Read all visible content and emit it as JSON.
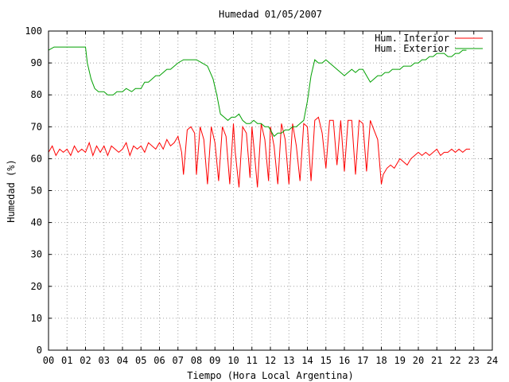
{
  "chart_data": {
    "type": "line",
    "title": "Humedad 01/05/2007",
    "xlabel": "Tiempo (Hora Local Argentina)",
    "ylabel": "Humedad (%)",
    "xlim": [
      0,
      24
    ],
    "ylim": [
      0,
      100
    ],
    "grid": true,
    "legend_position": "top-right",
    "x_tick_labels": [
      "00",
      "01",
      "02",
      "03",
      "04",
      "05",
      "06",
      "07",
      "08",
      "09",
      "10",
      "11",
      "12",
      "13",
      "14",
      "15",
      "16",
      "17",
      "18",
      "19",
      "20",
      "21",
      "22",
      "23",
      "24"
    ],
    "y_tick_labels": [
      "0",
      "10",
      "20",
      "30",
      "40",
      "50",
      "60",
      "70",
      "80",
      "90",
      "100"
    ],
    "series": [
      {
        "name": "Hum. Interior",
        "color": "#ff0000",
        "points": [
          [
            0.0,
            62
          ],
          [
            0.2,
            64
          ],
          [
            0.4,
            61
          ],
          [
            0.6,
            63
          ],
          [
            0.8,
            62
          ],
          [
            1.0,
            63
          ],
          [
            1.2,
            61
          ],
          [
            1.4,
            64
          ],
          [
            1.6,
            62
          ],
          [
            1.8,
            63
          ],
          [
            2.0,
            62
          ],
          [
            2.2,
            65
          ],
          [
            2.4,
            61
          ],
          [
            2.6,
            64
          ],
          [
            2.8,
            62
          ],
          [
            3.0,
            64
          ],
          [
            3.2,
            61
          ],
          [
            3.4,
            64
          ],
          [
            3.6,
            63
          ],
          [
            3.8,
            62
          ],
          [
            4.0,
            63
          ],
          [
            4.2,
            65
          ],
          [
            4.4,
            61
          ],
          [
            4.6,
            64
          ],
          [
            4.8,
            63
          ],
          [
            5.0,
            64
          ],
          [
            5.2,
            62
          ],
          [
            5.4,
            65
          ],
          [
            5.6,
            64
          ],
          [
            5.8,
            63
          ],
          [
            6.0,
            65
          ],
          [
            6.2,
            63
          ],
          [
            6.4,
            66
          ],
          [
            6.6,
            64
          ],
          [
            6.8,
            65
          ],
          [
            7.0,
            67
          ],
          [
            7.2,
            62
          ],
          [
            7.3,
            55
          ],
          [
            7.5,
            69
          ],
          [
            7.7,
            70
          ],
          [
            7.9,
            68
          ],
          [
            8.0,
            55
          ],
          [
            8.2,
            70
          ],
          [
            8.4,
            66
          ],
          [
            8.6,
            52
          ],
          [
            8.8,
            70
          ],
          [
            9.0,
            65
          ],
          [
            9.2,
            53
          ],
          [
            9.4,
            70
          ],
          [
            9.6,
            67
          ],
          [
            9.8,
            52
          ],
          [
            10.0,
            71
          ],
          [
            10.1,
            62
          ],
          [
            10.3,
            51
          ],
          [
            10.5,
            70
          ],
          [
            10.7,
            68
          ],
          [
            10.9,
            54
          ],
          [
            11.0,
            70
          ],
          [
            11.1,
            64
          ],
          [
            11.3,
            51
          ],
          [
            11.5,
            71
          ],
          [
            11.7,
            66
          ],
          [
            11.9,
            53
          ],
          [
            12.0,
            70
          ],
          [
            12.2,
            64
          ],
          [
            12.4,
            52
          ],
          [
            12.6,
            71
          ],
          [
            12.8,
            66
          ],
          [
            13.0,
            52
          ],
          [
            13.2,
            71
          ],
          [
            13.4,
            64
          ],
          [
            13.6,
            53
          ],
          [
            13.8,
            71
          ],
          [
            14.0,
            70
          ],
          [
            14.2,
            53
          ],
          [
            14.4,
            72
          ],
          [
            14.6,
            73
          ],
          [
            14.8,
            68
          ],
          [
            15.0,
            57
          ],
          [
            15.2,
            72
          ],
          [
            15.4,
            72
          ],
          [
            15.6,
            58
          ],
          [
            15.8,
            72
          ],
          [
            16.0,
            56
          ],
          [
            16.2,
            72
          ],
          [
            16.4,
            72
          ],
          [
            16.6,
            55
          ],
          [
            16.8,
            72
          ],
          [
            17.0,
            71
          ],
          [
            17.2,
            56
          ],
          [
            17.4,
            72
          ],
          [
            17.6,
            69
          ],
          [
            17.8,
            66
          ],
          [
            18.0,
            52
          ],
          [
            18.1,
            55
          ],
          [
            18.3,
            57
          ],
          [
            18.5,
            58
          ],
          [
            18.7,
            57
          ],
          [
            19.0,
            60
          ],
          [
            19.2,
            59
          ],
          [
            19.4,
            58
          ],
          [
            19.6,
            60
          ],
          [
            19.8,
            61
          ],
          [
            20.0,
            62
          ],
          [
            20.2,
            61
          ],
          [
            20.4,
            62
          ],
          [
            20.6,
            61
          ],
          [
            20.8,
            62
          ],
          [
            21.0,
            63
          ],
          [
            21.2,
            61
          ],
          [
            21.4,
            62
          ],
          [
            21.6,
            62
          ],
          [
            21.8,
            63
          ],
          [
            22.0,
            62
          ],
          [
            22.2,
            63
          ],
          [
            22.4,
            62
          ],
          [
            22.6,
            63
          ],
          [
            22.8,
            63
          ]
        ]
      },
      {
        "name": "Hum. Exterior",
        "color": "#00a000",
        "points": [
          [
            0.0,
            94
          ],
          [
            0.3,
            95
          ],
          [
            1.0,
            95
          ],
          [
            1.5,
            95
          ],
          [
            2.0,
            95
          ],
          [
            2.1,
            90
          ],
          [
            2.3,
            85
          ],
          [
            2.5,
            82
          ],
          [
            2.7,
            81
          ],
          [
            3.0,
            81
          ],
          [
            3.2,
            80
          ],
          [
            3.5,
            80
          ],
          [
            3.7,
            81
          ],
          [
            4.0,
            81
          ],
          [
            4.2,
            82
          ],
          [
            4.5,
            81
          ],
          [
            4.7,
            82
          ],
          [
            5.0,
            82
          ],
          [
            5.2,
            84
          ],
          [
            5.4,
            84
          ],
          [
            5.6,
            85
          ],
          [
            5.8,
            86
          ],
          [
            6.0,
            86
          ],
          [
            6.2,
            87
          ],
          [
            6.4,
            88
          ],
          [
            6.6,
            88
          ],
          [
            6.8,
            89
          ],
          [
            7.0,
            90
          ],
          [
            7.3,
            91
          ],
          [
            7.6,
            91
          ],
          [
            8.0,
            91
          ],
          [
            8.3,
            90
          ],
          [
            8.6,
            89
          ],
          [
            8.9,
            85
          ],
          [
            9.1,
            80
          ],
          [
            9.3,
            74
          ],
          [
            9.5,
            73
          ],
          [
            9.7,
            72
          ],
          [
            9.9,
            73
          ],
          [
            10.1,
            73
          ],
          [
            10.3,
            74
          ],
          [
            10.5,
            72
          ],
          [
            10.7,
            71
          ],
          [
            10.9,
            71
          ],
          [
            11.1,
            72
          ],
          [
            11.3,
            71
          ],
          [
            11.5,
            71
          ],
          [
            11.7,
            70
          ],
          [
            11.9,
            70
          ],
          [
            12.0,
            69
          ],
          [
            12.2,
            67
          ],
          [
            12.4,
            68
          ],
          [
            12.6,
            68
          ],
          [
            12.8,
            69
          ],
          [
            13.0,
            69
          ],
          [
            13.2,
            70
          ],
          [
            13.4,
            70
          ],
          [
            13.6,
            71
          ],
          [
            13.8,
            72
          ],
          [
            14.0,
            78
          ],
          [
            14.2,
            86
          ],
          [
            14.4,
            91
          ],
          [
            14.6,
            90
          ],
          [
            14.8,
            90
          ],
          [
            15.0,
            91
          ],
          [
            15.2,
            90
          ],
          [
            15.4,
            89
          ],
          [
            15.6,
            88
          ],
          [
            15.8,
            87
          ],
          [
            16.0,
            86
          ],
          [
            16.2,
            87
          ],
          [
            16.4,
            88
          ],
          [
            16.6,
            87
          ],
          [
            16.8,
            88
          ],
          [
            17.0,
            88
          ],
          [
            17.2,
            86
          ],
          [
            17.4,
            84
          ],
          [
            17.6,
            85
          ],
          [
            17.8,
            86
          ],
          [
            18.0,
            86
          ],
          [
            18.2,
            87
          ],
          [
            18.4,
            87
          ],
          [
            18.6,
            88
          ],
          [
            18.8,
            88
          ],
          [
            19.0,
            88
          ],
          [
            19.2,
            89
          ],
          [
            19.4,
            89
          ],
          [
            19.6,
            89
          ],
          [
            19.8,
            90
          ],
          [
            20.0,
            90
          ],
          [
            20.2,
            91
          ],
          [
            20.4,
            91
          ],
          [
            20.6,
            92
          ],
          [
            20.8,
            92
          ],
          [
            21.0,
            93
          ],
          [
            21.2,
            93
          ],
          [
            21.4,
            93
          ],
          [
            21.6,
            92
          ],
          [
            21.8,
            92
          ],
          [
            22.0,
            93
          ],
          [
            22.2,
            93
          ],
          [
            22.4,
            94
          ],
          [
            22.6,
            94
          ]
        ]
      }
    ]
  }
}
